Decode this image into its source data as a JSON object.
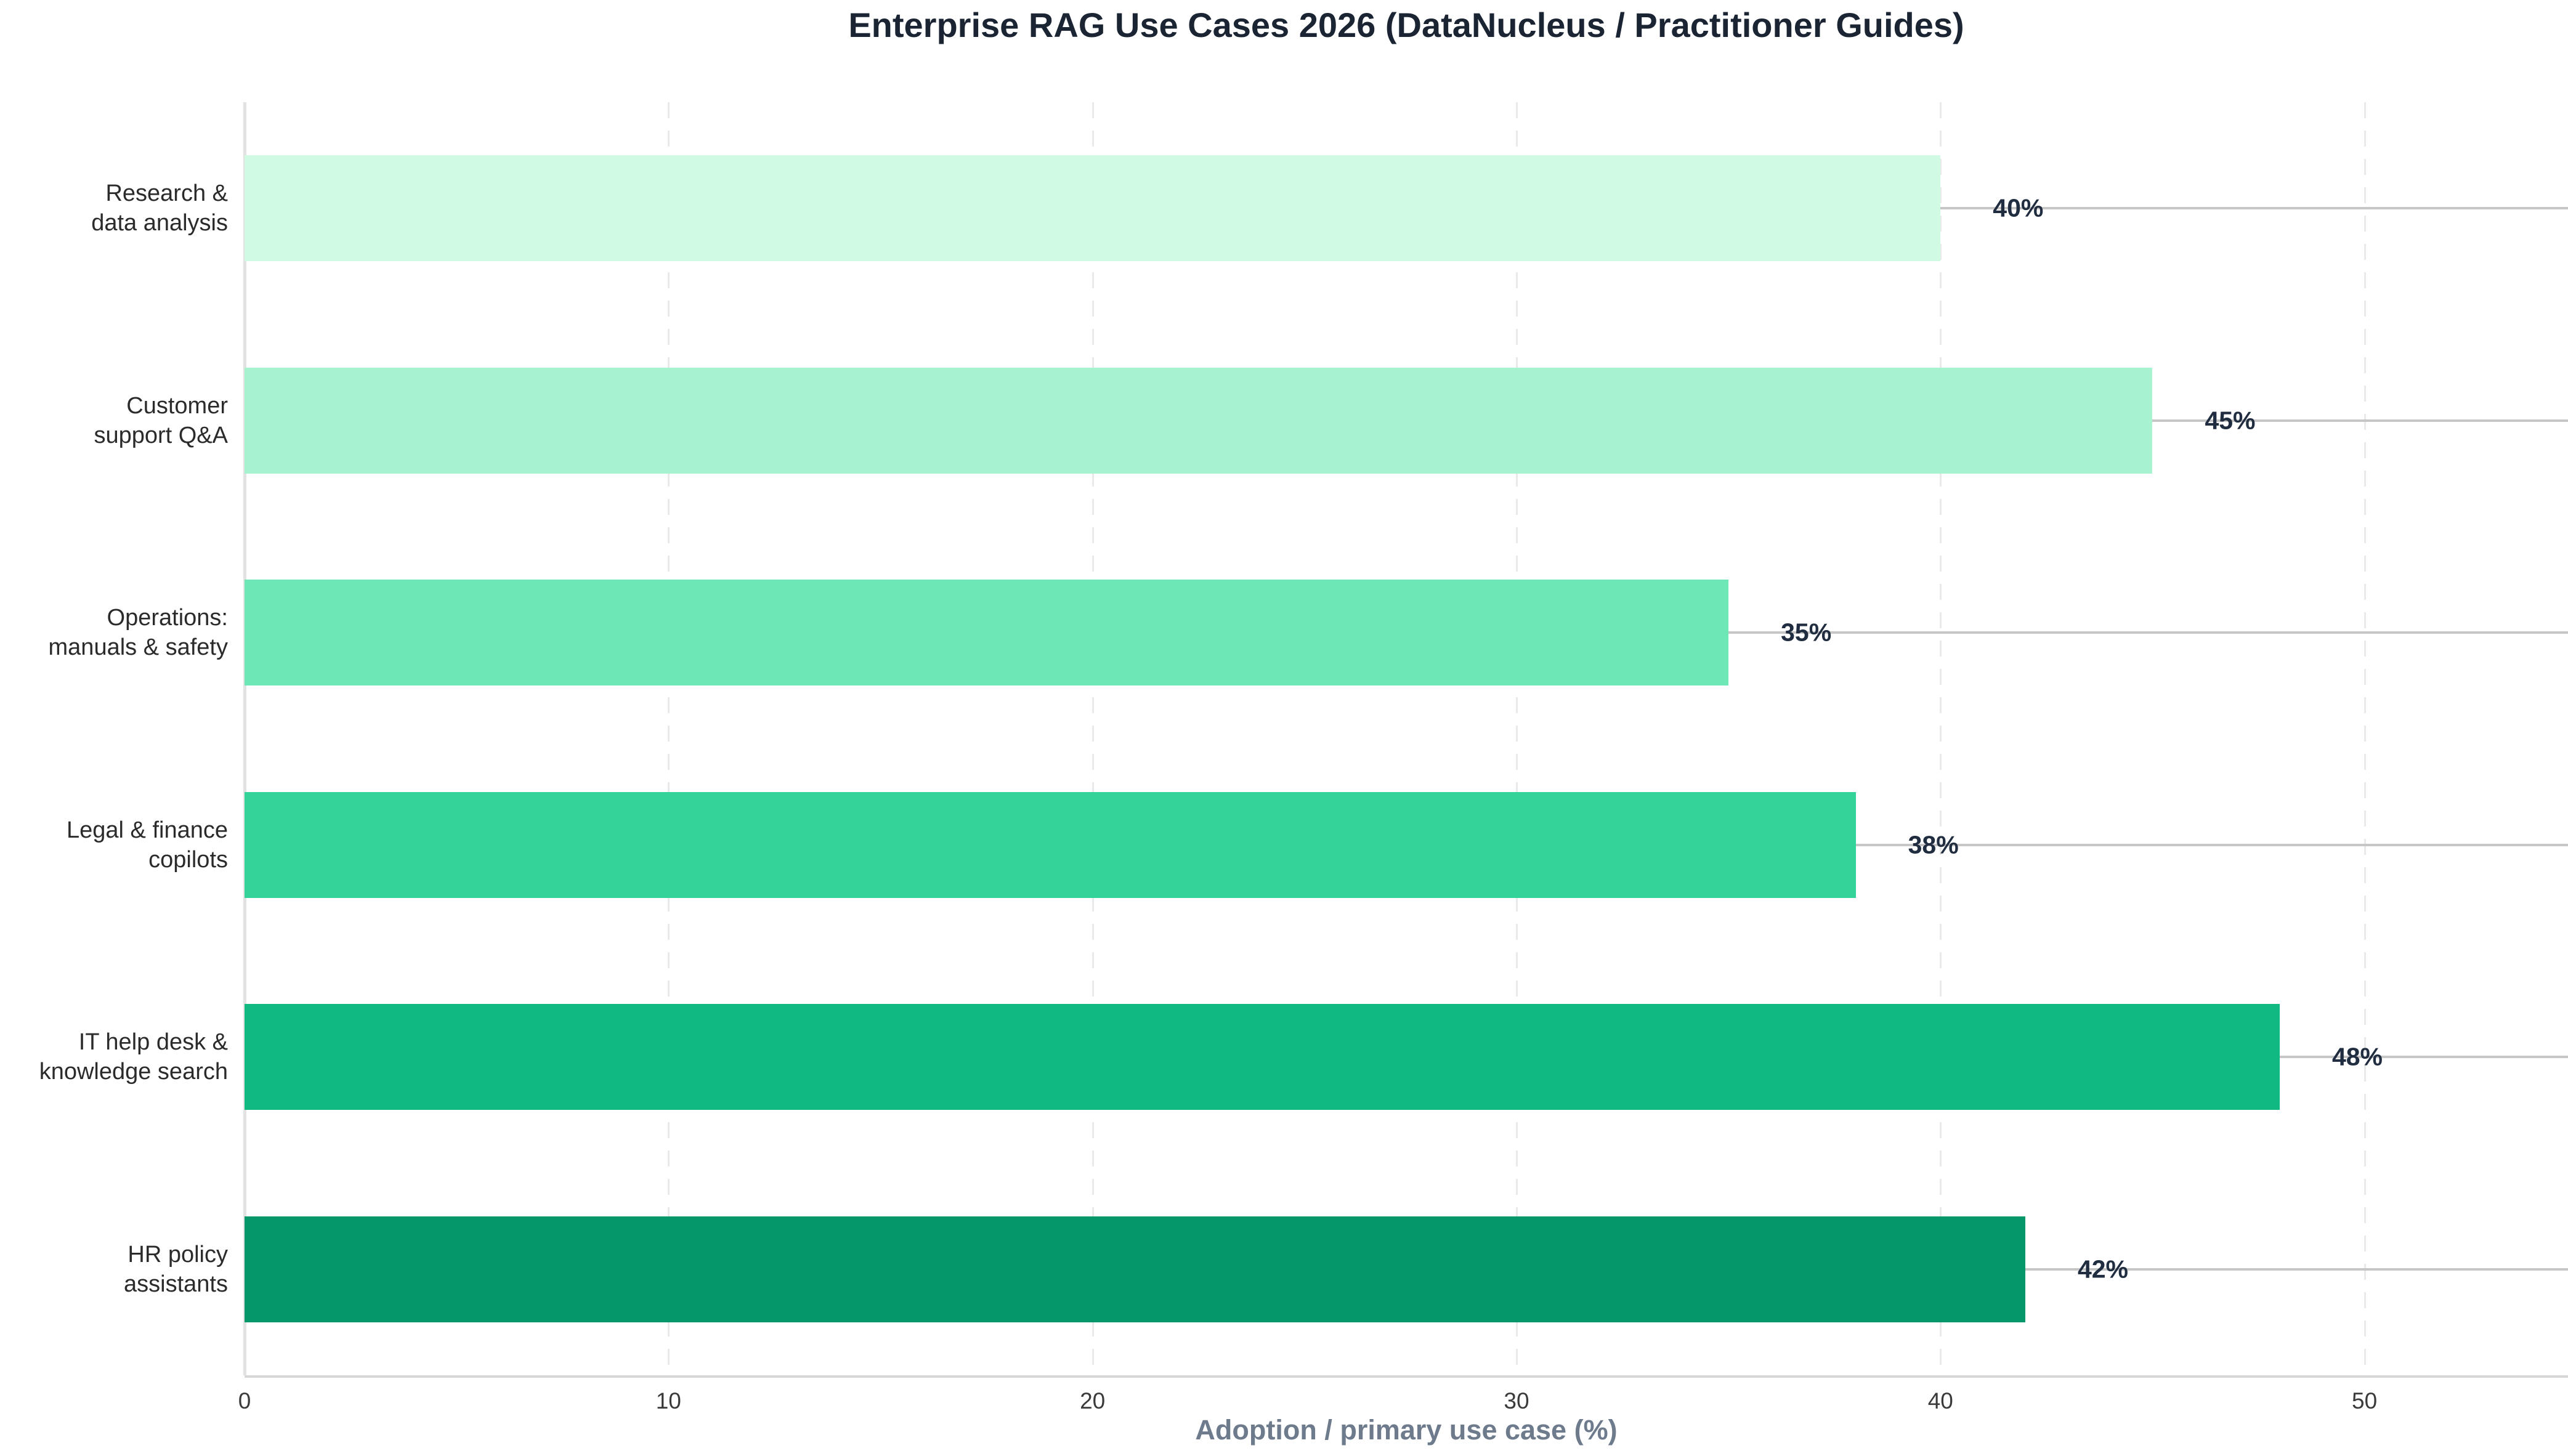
{
  "title": "Enterprise RAG Use Cases 2026 (DataNucleus / Practitioner Guides)",
  "chart_data": {
    "type": "bar",
    "orientation": "horizontal",
    "title": "Enterprise RAG Use Cases 2026 (DataNucleus / Practitioner Guides)",
    "xlabel": "Adoption / primary use case (%)",
    "ylabel": "",
    "categories": [
      [
        "Research &",
        "data analysis"
      ],
      [
        "Customer",
        "support Q&A"
      ],
      [
        "Operations:",
        "manuals & safety"
      ],
      [
        "Legal & finance",
        "copilots"
      ],
      [
        "IT help desk &",
        "knowledge search"
      ],
      [
        "HR policy",
        "assistants"
      ]
    ],
    "values": [
      40,
      45,
      35,
      38,
      48,
      42
    ],
    "value_labels": [
      "40%",
      "45%",
      "35%",
      "38%",
      "48%",
      "42%"
    ],
    "bar_colors": [
      "#d1fae5",
      "#a7f3d0",
      "#6ee7b7",
      "#34d399",
      "#10b981",
      "#059669"
    ],
    "x_ticks": [
      0,
      10,
      20,
      30,
      40,
      50
    ],
    "xlim": [
      0,
      54.8
    ],
    "grid": "vertical-dashed",
    "legend": "none",
    "colors": {
      "title": "#1a2433",
      "value_label": "#202c3f",
      "category_label": "#2b2b2b",
      "tick_label": "#3a3a3a",
      "axis_title": "#6e7b8c",
      "leader_line": "#c6c6c6",
      "gridline": "#e9e9e9",
      "axis_line": "#d6d6d6"
    }
  }
}
